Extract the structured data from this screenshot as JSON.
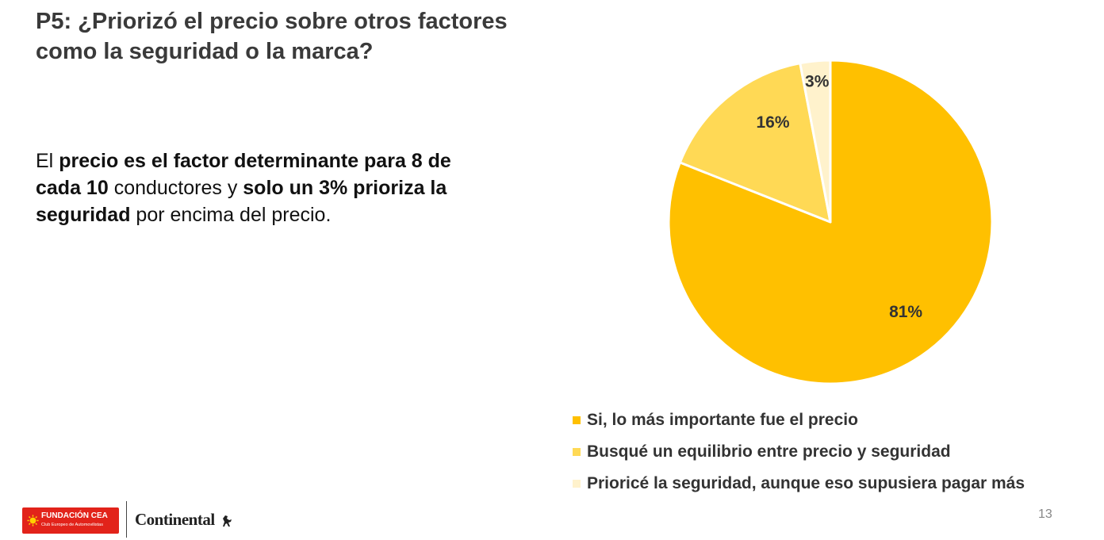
{
  "title": "P5: ¿Priorizó el precio sobre otros factores como la seguridad o la marca?",
  "body": {
    "parts": [
      {
        "text": "El ",
        "bold": false
      },
      {
        "text": "precio es el factor determinante para 8 de cada 10",
        "bold": true
      },
      {
        "text": " conductores y ",
        "bold": false
      },
      {
        "text": "solo un 3% prioriza la seguridad",
        "bold": true
      },
      {
        "text": " por encima del precio.",
        "bold": false
      }
    ]
  },
  "chart_data": {
    "type": "pie",
    "title": "",
    "categories": [
      "Si, lo más importante fue el precio",
      "Busqué un equilibrio entre precio y seguridad",
      "Prioricé la seguridad, aunque eso supusiera pagar más"
    ],
    "values": [
      81,
      16,
      3
    ],
    "data_labels": [
      "81%",
      "16%",
      "3%"
    ],
    "colors": [
      "#FFC000",
      "#FFD955",
      "#FFF2CC"
    ],
    "start_angle": "12 o'clock",
    "direction": "clockwise",
    "legend_position": "bottom"
  },
  "footer": {
    "page_number": "13",
    "logo_cea_title": "FUNDACIÓN CEA",
    "logo_cea_subtitle": "Club Europeo de Automovilistas",
    "logo_continental": "Continental"
  }
}
